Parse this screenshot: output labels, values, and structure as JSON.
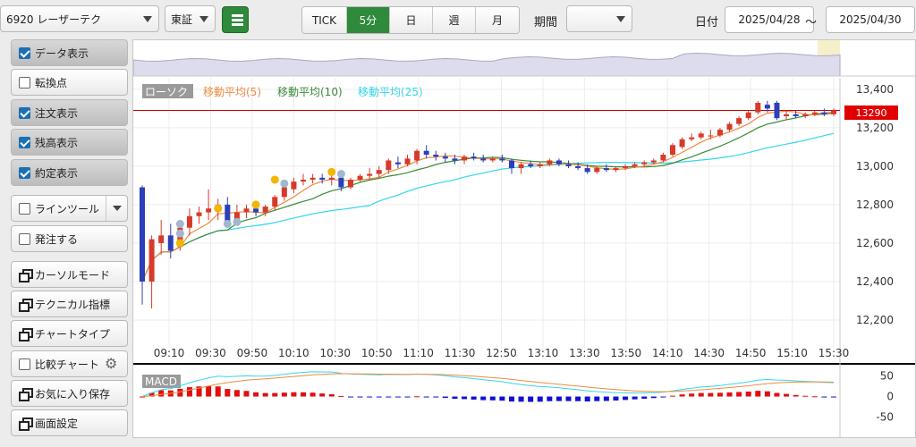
{
  "toolbar": {
    "symbol": "6920 レーザーテク",
    "market": "東証",
    "periods": [
      "TICK",
      "5分",
      "日",
      "週",
      "月"
    ],
    "active_period": "5分",
    "period_label": "期間",
    "period_value": "",
    "date_label": "日付",
    "date_from": "2025/04/28",
    "date_sep": "～",
    "date_to": "2025/04/30"
  },
  "sidebar": {
    "data_display": "データ表示",
    "turning_point": "転換点",
    "order_display": "注文表示",
    "position_display": "残高表示",
    "execution_display": "約定表示",
    "line_tool": "ラインツール",
    "place_order": "発注する",
    "cursor_mode": "カーソルモード",
    "technical": "テクニカル指標",
    "chart_type": "チャートタイプ",
    "compare_chart": "比較チャート",
    "save_favorite": "お気に入り保存",
    "screen_settings": "画面設定"
  },
  "colors": {
    "accent": "#2f8a3b",
    "up_candle": "#d63a2a",
    "down_candle": "#2c3fb8",
    "ma5": "#f08a40",
    "ma10": "#3a8a3a",
    "ma25": "#33d6e8",
    "price_line": "#c00000"
  },
  "chart_data": {
    "type": "candlestick",
    "legend": [
      "ローソク",
      "移動平均(5)",
      "移動平均(10)",
      "移動平均(25)"
    ],
    "current_price": "13290",
    "y_ticks": [
      "13,400",
      "13,200",
      "13,000",
      "12,800",
      "12,600",
      "12,400",
      "12,200"
    ],
    "y_tick_values": [
      13400,
      13200,
      13000,
      12800,
      12600,
      12400,
      12200
    ],
    "ylim": [
      12130,
      13460
    ],
    "x_ticks": [
      "09:10",
      "09:30",
      "09:50",
      "10:10",
      "10:30",
      "10:50",
      "11:10",
      "11:30",
      "12:50",
      "13:10",
      "13:30",
      "13:50",
      "14:10",
      "14:30",
      "14:50",
      "15:10",
      "15:30"
    ],
    "candles": [
      {
        "o": 12890,
        "h": 12900,
        "c": 12400,
        "l": 12280
      },
      {
        "o": 12400,
        "h": 12640,
        "c": 12620,
        "l": 12260
      },
      {
        "o": 12600,
        "h": 12720,
        "c": 12640,
        "l": 12540
      },
      {
        "o": 12640,
        "h": 12700,
        "c": 12560,
        "l": 12520
      },
      {
        "o": 12580,
        "h": 12720,
        "c": 12680,
        "l": 12560
      },
      {
        "o": 12680,
        "h": 12780,
        "c": 12740,
        "l": 12640
      },
      {
        "o": 12740,
        "h": 12790,
        "c": 12760,
        "l": 12700
      },
      {
        "o": 12760,
        "h": 12880,
        "c": 12780,
        "l": 12720
      },
      {
        "o": 12780,
        "h": 12830,
        "c": 12800,
        "l": 12720
      },
      {
        "o": 12800,
        "h": 12840,
        "c": 12700,
        "l": 12680
      },
      {
        "o": 12700,
        "h": 12800,
        "c": 12760,
        "l": 12690
      },
      {
        "o": 12760,
        "h": 12800,
        "c": 12780,
        "l": 12730
      },
      {
        "o": 12780,
        "h": 12810,
        "c": 12760,
        "l": 12740
      },
      {
        "o": 12760,
        "h": 12800,
        "c": 12790,
        "l": 12740
      },
      {
        "o": 12790,
        "h": 12850,
        "c": 12840,
        "l": 12770
      },
      {
        "o": 12840,
        "h": 12900,
        "c": 12890,
        "l": 12820
      },
      {
        "o": 12880,
        "h": 12940,
        "c": 12920,
        "l": 12860
      },
      {
        "o": 12920,
        "h": 12960,
        "c": 12930,
        "l": 12900
      },
      {
        "o": 12930,
        "h": 12960,
        "c": 12940,
        "l": 12910
      },
      {
        "o": 12940,
        "h": 12960,
        "c": 12930,
        "l": 12910
      },
      {
        "o": 12930,
        "h": 12960,
        "c": 12940,
        "l": 12900
      },
      {
        "o": 12940,
        "h": 12960,
        "c": 12890,
        "l": 12870
      },
      {
        "o": 12890,
        "h": 12940,
        "c": 12930,
        "l": 12880
      },
      {
        "o": 12930,
        "h": 12960,
        "c": 12950,
        "l": 12920
      },
      {
        "o": 12950,
        "h": 12990,
        "c": 12960,
        "l": 12930
      },
      {
        "o": 12960,
        "h": 13000,
        "c": 12980,
        "l": 12940
      },
      {
        "o": 12980,
        "h": 13040,
        "c": 13030,
        "l": 12960
      },
      {
        "o": 13020,
        "h": 13050,
        "c": 13010,
        "l": 12990
      },
      {
        "o": 13010,
        "h": 13060,
        "c": 13040,
        "l": 13000
      },
      {
        "o": 13030,
        "h": 13090,
        "c": 13080,
        "l": 13010
      },
      {
        "o": 13080,
        "h": 13110,
        "c": 13060,
        "l": 13040
      },
      {
        "o": 13060,
        "h": 13080,
        "c": 13050,
        "l": 13030
      },
      {
        "o": 13050,
        "h": 13070,
        "c": 13040,
        "l": 13020
      },
      {
        "o": 13040,
        "h": 13060,
        "c": 13030,
        "l": 13010
      },
      {
        "o": 13030,
        "h": 13060,
        "c": 13050,
        "l": 13010
      },
      {
        "o": 13050,
        "h": 13070,
        "c": 13040,
        "l": 13030
      },
      {
        "o": 13040,
        "h": 13060,
        "c": 13030,
        "l": 13020
      },
      {
        "o": 13030,
        "h": 13050,
        "c": 13040,
        "l": 13020
      },
      {
        "o": 13040,
        "h": 13060,
        "c": 13030,
        "l": 13020
      },
      {
        "o": 13030,
        "h": 13040,
        "c": 12990,
        "l": 12960
      },
      {
        "o": 12990,
        "h": 13020,
        "c": 13010,
        "l": 12960
      },
      {
        "o": 13010,
        "h": 13030,
        "c": 13000,
        "l": 12990
      },
      {
        "o": 13000,
        "h": 13020,
        "c": 13010,
        "l": 12990
      },
      {
        "o": 13010,
        "h": 13040,
        "c": 13030,
        "l": 13000
      },
      {
        "o": 13030,
        "h": 13040,
        "c": 13010,
        "l": 13000
      },
      {
        "o": 13010,
        "h": 13030,
        "c": 13000,
        "l": 12990
      },
      {
        "o": 13000,
        "h": 13020,
        "c": 12990,
        "l": 12980
      },
      {
        "o": 12990,
        "h": 13010,
        "c": 12970,
        "l": 12960
      },
      {
        "o": 12970,
        "h": 13000,
        "c": 12990,
        "l": 12960
      },
      {
        "o": 12990,
        "h": 13010,
        "c": 12980,
        "l": 12970
      },
      {
        "o": 12980,
        "h": 13000,
        "c": 12990,
        "l": 12970
      },
      {
        "o": 12990,
        "h": 13010,
        "c": 13000,
        "l": 12980
      },
      {
        "o": 13000,
        "h": 13020,
        "c": 13010,
        "l": 12990
      },
      {
        "o": 13010,
        "h": 13030,
        "c": 13020,
        "l": 13000
      },
      {
        "o": 13020,
        "h": 13040,
        "c": 13030,
        "l": 13010
      },
      {
        "o": 13030,
        "h": 13070,
        "c": 13060,
        "l": 13020
      },
      {
        "o": 13060,
        "h": 13120,
        "c": 13110,
        "l": 13050
      },
      {
        "o": 13100,
        "h": 13150,
        "c": 13140,
        "l": 13090
      },
      {
        "o": 13140,
        "h": 13170,
        "c": 13150,
        "l": 13130
      },
      {
        "o": 13150,
        "h": 13180,
        "c": 13170,
        "l": 13140
      },
      {
        "o": 13160,
        "h": 13190,
        "c": 13160,
        "l": 13140
      },
      {
        "o": 13160,
        "h": 13200,
        "c": 13190,
        "l": 13150
      },
      {
        "o": 13190,
        "h": 13230,
        "c": 13220,
        "l": 13180
      },
      {
        "o": 13220,
        "h": 13260,
        "c": 13250,
        "l": 13210
      },
      {
        "o": 13250,
        "h": 13290,
        "c": 13280,
        "l": 13240
      },
      {
        "o": 13280,
        "h": 13340,
        "c": 13330,
        "l": 13270
      },
      {
        "o": 13320,
        "h": 13340,
        "c": 13300,
        "l": 13280
      },
      {
        "o": 13330,
        "h": 13340,
        "c": 13250,
        "l": 13240
      },
      {
        "o": 13260,
        "h": 13290,
        "c": 13270,
        "l": 13240
      },
      {
        "o": 13270,
        "h": 13290,
        "c": 13260,
        "l": 13250
      },
      {
        "o": 13260,
        "h": 13280,
        "c": 13270,
        "l": 13250
      },
      {
        "o": 13270,
        "h": 13290,
        "c": 13280,
        "l": 13260
      },
      {
        "o": 13280,
        "h": 13300,
        "c": 13270,
        "l": 13260
      },
      {
        "o": 13270,
        "h": 13300,
        "c": 13290,
        "l": 13260
      }
    ],
    "macd": {
      "label": "MACD",
      "y_ticks": [
        "50",
        "0",
        "-50"
      ],
      "y_tick_values": [
        50,
        0,
        -50
      ],
      "ylim": [
        -90,
        75
      ]
    }
  }
}
